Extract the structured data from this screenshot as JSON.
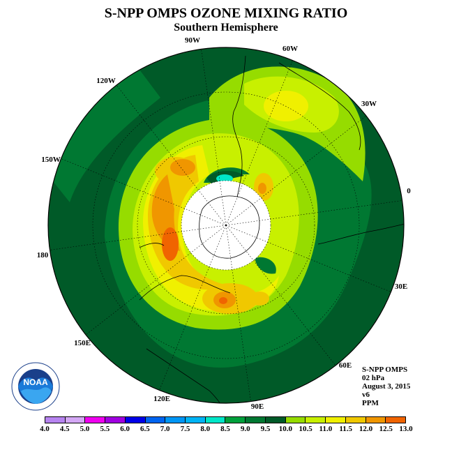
{
  "title": "S-NPP OMPS OZONE MIXING RATIO",
  "subtitle": "Southern Hemisphere",
  "longitude_labels": [
    "90W",
    "60W",
    "30W",
    "0",
    "30E",
    "60E",
    "90E",
    "120E",
    "150E",
    "180",
    "150W",
    "120W"
  ],
  "info": {
    "instrument": "S-NPP OMPS",
    "level": "02 hPa",
    "date": "August 3, 2015",
    "version": "v6",
    "unit": "PPM"
  },
  "logo": {
    "text": "NOAA",
    "ring_text": "NATIONAL OCEANIC AND ATMOSPHERIC ADMINISTRATION · U.S. DEPARTMENT OF COMMERCE"
  },
  "colorbar": {
    "ticks": [
      "4.0",
      "4.5",
      "5.0",
      "5.5",
      "6.0",
      "6.5",
      "7.0",
      "7.5",
      "8.0",
      "8.5",
      "9.0",
      "9.5",
      "10.0",
      "10.5",
      "11.0",
      "11.5",
      "12.0",
      "12.5",
      "13.0"
    ],
    "colors": [
      "#b784f0",
      "#d4a8f5",
      "#f000f0",
      "#a000e0",
      "#0000e8",
      "#0064f0",
      "#0096f5",
      "#00b4f5",
      "#00e6c8",
      "#00a03c",
      "#007832",
      "#005a28",
      "#96dc00",
      "#c8f000",
      "#f0f000",
      "#f0c800",
      "#f09600",
      "#f06400",
      "#f00000",
      "#7a5a3c"
    ]
  },
  "colors": {
    "dark_green": "#005a28",
    "mid_green": "#007832",
    "lime": "#96dc00",
    "yellow_green": "#c8f000",
    "yellow": "#f0f000",
    "orange_yellow": "#f0c800",
    "orange": "#f09600",
    "red_orange": "#f06400",
    "teal": "#00e6c8"
  }
}
